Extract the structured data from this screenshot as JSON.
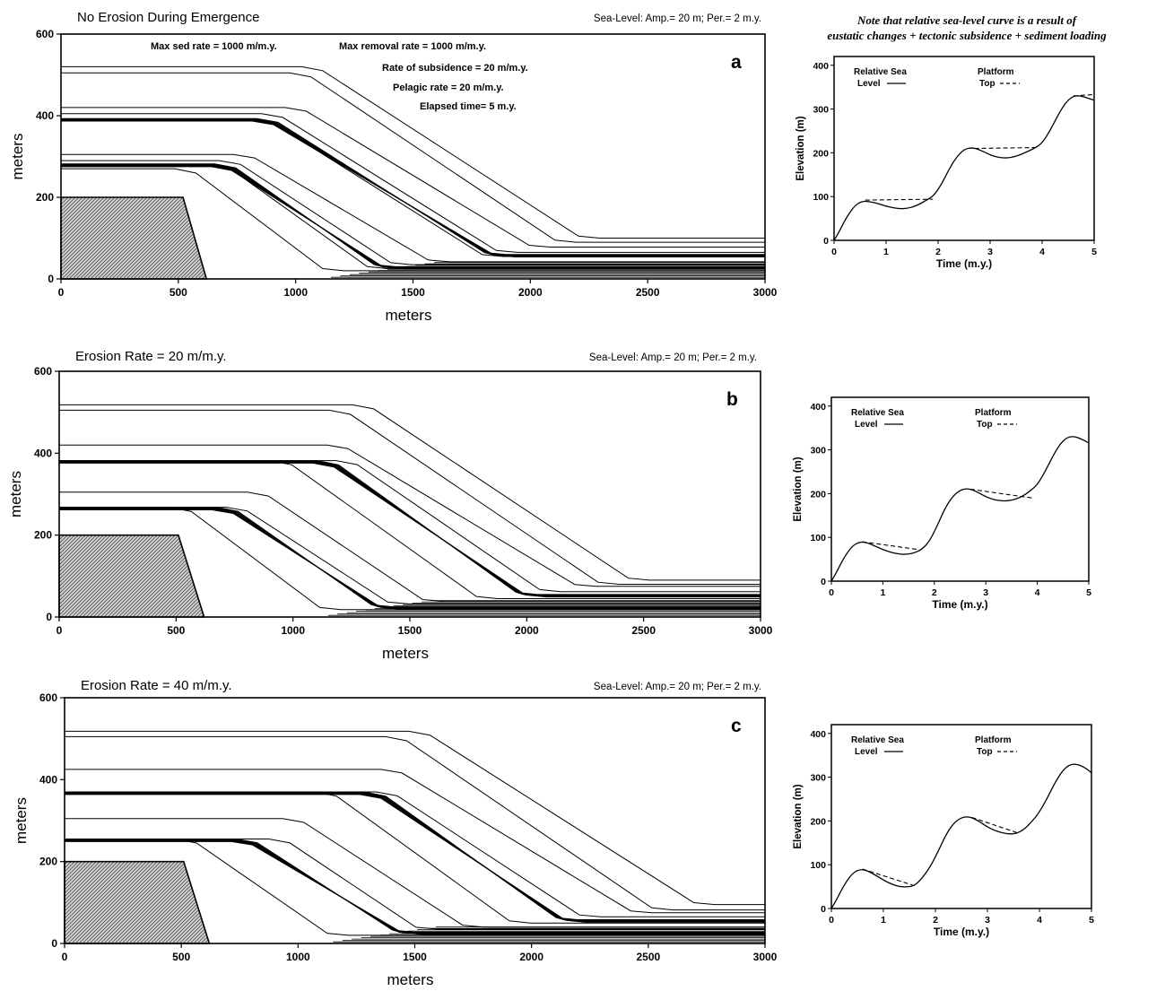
{
  "figure_note": {
    "line1": "Note that relative sea-level curve is a result of",
    "line2": "eustatic changes + tectonic subsidence + sediment loading"
  },
  "chart_data": [
    {
      "id": "a",
      "type": "line",
      "panel_letter": "a",
      "title": "No Erosion During Emergence",
      "subtitle": "Sea-Level: Amp.= 20 m; Per.= 2 m.y.",
      "annotations": [
        "Max sed rate = 1000 m/m.y.",
        "Max removal rate = 1000 m/m.y.",
        "Rate of subsidence = 20 m/m.y.",
        "Pelagic rate = 20 m/m.y.",
        "Elapsed time= 5 m.y."
      ],
      "xlabel": "meters",
      "ylabel": "meters",
      "xlim": [
        0,
        3000
      ],
      "ylim": [
        0,
        600
      ],
      "xticks": [
        0,
        500,
        1000,
        1500,
        2000,
        2500,
        3000
      ],
      "yticks": [
        0,
        200,
        400,
        600
      ],
      "basement": [
        [
          0,
          200
        ],
        [
          520,
          200
        ],
        [
          620,
          0
        ],
        [
          0,
          0
        ]
      ],
      "horizons": [
        {
          "top": 520,
          "shelf_end": 1070,
          "foot_x": 2250,
          "foot_y": 100
        },
        {
          "top": 505,
          "shelf_end": 1020,
          "foot_x": 2150,
          "foot_y": 90
        },
        {
          "top": 420,
          "shelf_end": 1000,
          "foot_x": 2040,
          "foot_y": 78
        },
        {
          "top": 405,
          "shelf_end": 900,
          "foot_x": 1900,
          "foot_y": 65
        },
        {
          "top": 393,
          "shelf_end": 880,
          "foot_x": 1850,
          "foot_y": 60
        },
        {
          "top": 388,
          "shelf_end": 870,
          "foot_x": 1840,
          "foot_y": 55
        },
        {
          "top": 305,
          "shelf_end": 780,
          "foot_x": 1610,
          "foot_y": 42
        },
        {
          "top": 290,
          "shelf_end": 720,
          "foot_x": 1450,
          "foot_y": 35
        },
        {
          "top": 282,
          "shelf_end": 700,
          "foot_x": 1380,
          "foot_y": 30
        },
        {
          "top": 275,
          "shelf_end": 690,
          "foot_x": 1350,
          "foot_y": 25
        },
        {
          "top": 270,
          "shelf_end": 530,
          "foot_x": 1160,
          "foot_y": 20
        }
      ],
      "band_groups": [
        {
          "top": 393,
          "shelf_end": 880,
          "foot_x": 1850,
          "foot_y": 60
        },
        {
          "top": 282,
          "shelf_end": 700,
          "foot_x": 1380,
          "foot_y": 30
        }
      ]
    },
    {
      "id": "a-inset",
      "type": "line",
      "xlabel": "Time (m.y.)",
      "ylabel": "Elevation (m)",
      "xlim": [
        0,
        5
      ],
      "ylim": [
        0,
        420
      ],
      "xticks": [
        0,
        1,
        2,
        3,
        4,
        5
      ],
      "yticks": [
        0,
        100,
        200,
        300,
        400
      ],
      "legend": {
        "sea_label_1": "Relative Sea",
        "sea_label_2": "Level",
        "top_label_1": "Platform",
        "top_label_2": "Top"
      },
      "series": [
        {
          "name": "Relative Sea Level",
          "x": [
            0,
            0.1,
            0.25,
            0.4,
            0.55,
            0.7,
            0.85,
            1.0,
            1.15,
            1.3,
            1.45,
            1.6,
            1.75,
            1.9,
            2.05,
            2.2,
            2.35,
            2.5,
            2.65,
            2.8,
            2.95,
            3.1,
            3.25,
            3.4,
            3.55,
            3.7,
            3.85,
            4.0,
            4.15,
            4.3,
            4.45,
            4.6,
            4.75,
            4.9,
            5.0
          ],
          "y": [
            0,
            20,
            55,
            80,
            90,
            88,
            84,
            78,
            74,
            72,
            74,
            80,
            90,
            100,
            125,
            160,
            190,
            208,
            212,
            207,
            198,
            191,
            188,
            189,
            194,
            202,
            210,
            222,
            250,
            285,
            315,
            330,
            330,
            324,
            320
          ]
        },
        {
          "name": "Platform Top",
          "segments": [
            [
              [
                0.6,
                92
              ],
              [
                1.9,
                94
              ]
            ],
            [
              [
                2.7,
                210
              ],
              [
                3.9,
                212
              ]
            ],
            [
              [
                4.6,
                330
              ],
              [
                5.0,
                333
              ]
            ]
          ]
        }
      ]
    },
    {
      "id": "b",
      "type": "line",
      "panel_letter": "b",
      "title": "Erosion Rate = 20 m/m.y.",
      "subtitle": "Sea-Level: Amp.= 20 m; Per.= 2 m.y.",
      "xlabel": "meters",
      "ylabel": "meters",
      "xlim": [
        0,
        3000
      ],
      "ylim": [
        0,
        600
      ],
      "xticks": [
        0,
        500,
        1000,
        1500,
        2000,
        2500,
        3000
      ],
      "yticks": [
        0,
        200,
        400,
        600
      ],
      "basement": [
        [
          0,
          200
        ],
        [
          510,
          200
        ],
        [
          620,
          0
        ],
        [
          0,
          0
        ]
      ],
      "horizons": [
        {
          "top": 518,
          "shelf_end": 1300,
          "foot_x": 2480,
          "foot_y": 90
        },
        {
          "top": 505,
          "shelf_end": 1200,
          "foot_x": 2350,
          "foot_y": 80
        },
        {
          "top": 420,
          "shelf_end": 1190,
          "foot_x": 2250,
          "foot_y": 75
        },
        {
          "top": 382,
          "shelf_end": 1230,
          "foot_x": 2100,
          "foot_y": 62
        },
        {
          "top": 382,
          "shelf_end": 1150,
          "foot_x": 2000,
          "foot_y": 55
        },
        {
          "top": 382,
          "shelf_end": 950,
          "foot_x": 1830,
          "foot_y": 45
        },
        {
          "top": 305,
          "shelf_end": 850,
          "foot_x": 1600,
          "foot_y": 38
        },
        {
          "top": 268,
          "shelf_end": 760,
          "foot_x": 1450,
          "foot_y": 32
        },
        {
          "top": 268,
          "shelf_end": 720,
          "foot_x": 1380,
          "foot_y": 25
        },
        {
          "top": 268,
          "shelf_end": 520,
          "foot_x": 1160,
          "foot_y": 18
        }
      ],
      "band_groups": [
        {
          "top": 382,
          "shelf_end": 1150,
          "foot_x": 2000,
          "foot_y": 55
        },
        {
          "top": 268,
          "shelf_end": 720,
          "foot_x": 1380,
          "foot_y": 25
        }
      ]
    },
    {
      "id": "b-inset",
      "type": "line",
      "xlabel": "Time (m.y.)",
      "ylabel": "Elevation (m)",
      "xlim": [
        0,
        5
      ],
      "ylim": [
        0,
        420
      ],
      "xticks": [
        0,
        1,
        2,
        3,
        4,
        5
      ],
      "yticks": [
        0,
        100,
        200,
        300,
        400
      ],
      "legend": {
        "sea_label_1": "Relative Sea",
        "sea_label_2": "Level",
        "top_label_1": "Platform",
        "top_label_2": "Top"
      },
      "series": [
        {
          "name": "Relative Sea Level",
          "x": [
            0,
            0.1,
            0.25,
            0.4,
            0.55,
            0.7,
            0.85,
            1.0,
            1.15,
            1.3,
            1.45,
            1.6,
            1.75,
            1.9,
            2.05,
            2.2,
            2.35,
            2.5,
            2.65,
            2.8,
            2.95,
            3.1,
            3.25,
            3.4,
            3.55,
            3.7,
            3.85,
            4.0,
            4.15,
            4.3,
            4.45,
            4.6,
            4.75,
            4.9,
            5.0
          ],
          "y": [
            0,
            20,
            55,
            80,
            90,
            88,
            80,
            72,
            66,
            62,
            61,
            64,
            72,
            90,
            125,
            165,
            193,
            208,
            212,
            206,
            196,
            188,
            184,
            183,
            186,
            193,
            205,
            220,
            250,
            285,
            315,
            330,
            330,
            322,
            316
          ]
        },
        {
          "name": "Platform Top",
          "segments": [
            [
              [
                0.6,
                90
              ],
              [
                1.7,
                72
              ]
            ],
            [
              [
                2.7,
                210
              ],
              [
                3.9,
                190
              ]
            ]
          ]
        }
      ]
    },
    {
      "id": "c",
      "type": "line",
      "panel_letter": "c",
      "title": "Erosion Rate = 40 m/m.y.",
      "subtitle": "Sea-Level: Amp.= 20 m; Per.= 2 m.y.",
      "xlabel": "meters",
      "ylabel": "meters",
      "xlim": [
        0,
        3000
      ],
      "ylim": [
        0,
        600
      ],
      "xticks": [
        0,
        500,
        1000,
        1500,
        2000,
        2500,
        3000
      ],
      "yticks": [
        0,
        200,
        400,
        600
      ],
      "basement": [
        [
          0,
          200
        ],
        [
          510,
          200
        ],
        [
          620,
          0
        ],
        [
          0,
          0
        ]
      ],
      "horizons": [
        {
          "top": 518,
          "shelf_end": 1520,
          "foot_x": 2740,
          "foot_y": 95
        },
        {
          "top": 505,
          "shelf_end": 1420,
          "foot_x": 2560,
          "foot_y": 82
        },
        {
          "top": 425,
          "shelf_end": 1400,
          "foot_x": 2470,
          "foot_y": 75
        },
        {
          "top": 370,
          "shelf_end": 1380,
          "foot_x": 2250,
          "foot_y": 65
        },
        {
          "top": 370,
          "shelf_end": 1330,
          "foot_x": 2150,
          "foot_y": 58
        },
        {
          "top": 370,
          "shelf_end": 1120,
          "foot_x": 1950,
          "foot_y": 50
        },
        {
          "top": 305,
          "shelf_end": 980,
          "foot_x": 1750,
          "foot_y": 40
        },
        {
          "top": 255,
          "shelf_end": 920,
          "foot_x": 1550,
          "foot_y": 35
        },
        {
          "top": 255,
          "shelf_end": 780,
          "foot_x": 1450,
          "foot_y": 28
        },
        {
          "top": 255,
          "shelf_end": 520,
          "foot_x": 1170,
          "foot_y": 20
        }
      ],
      "band_groups": [
        {
          "top": 370,
          "shelf_end": 1330,
          "foot_x": 2150,
          "foot_y": 58
        },
        {
          "top": 255,
          "shelf_end": 780,
          "foot_x": 1450,
          "foot_y": 28
        }
      ]
    },
    {
      "id": "c-inset",
      "type": "line",
      "xlabel": "Time (m.y.)",
      "ylabel": "Elevation (m)",
      "xlim": [
        0,
        5
      ],
      "ylim": [
        0,
        420
      ],
      "xticks": [
        0,
        1,
        2,
        3,
        4,
        5
      ],
      "yticks": [
        0,
        100,
        200,
        300,
        400
      ],
      "legend": {
        "sea_label_1": "Relative Sea",
        "sea_label_2": "Level",
        "top_label_1": "Platform",
        "top_label_2": "Top"
      },
      "series": [
        {
          "name": "Relative Sea Level",
          "x": [
            0,
            0.1,
            0.25,
            0.4,
            0.55,
            0.7,
            0.85,
            1.0,
            1.15,
            1.3,
            1.45,
            1.6,
            1.75,
            1.9,
            2.05,
            2.2,
            2.35,
            2.5,
            2.65,
            2.8,
            2.95,
            3.1,
            3.25,
            3.4,
            3.55,
            3.7,
            3.85,
            4.0,
            4.15,
            4.3,
            4.45,
            4.6,
            4.75,
            4.9,
            5.0
          ],
          "y": [
            0,
            20,
            55,
            80,
            90,
            86,
            76,
            65,
            56,
            50,
            49,
            52,
            70,
            95,
            130,
            168,
            195,
            208,
            210,
            202,
            190,
            180,
            174,
            170,
            171,
            180,
            198,
            220,
            252,
            288,
            316,
            330,
            329,
            320,
            310
          ]
        },
        {
          "name": "Platform Top",
          "segments": [
            [
              [
                0.6,
                90
              ],
              [
                1.6,
                52
              ]
            ],
            [
              [
                2.7,
                208
              ],
              [
                3.6,
                172
              ]
            ]
          ]
        }
      ]
    }
  ]
}
